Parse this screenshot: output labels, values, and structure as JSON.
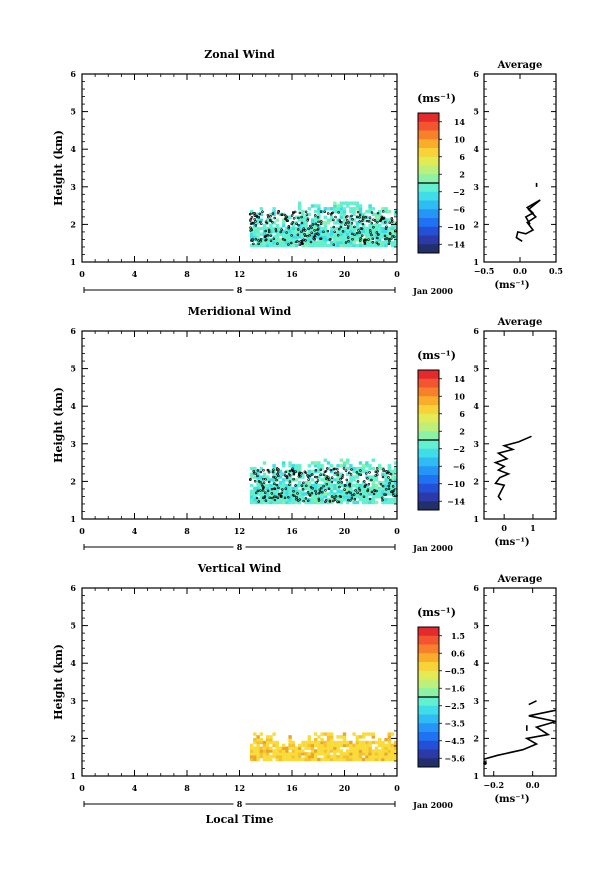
{
  "chart_data": [
    {
      "type": "heatmap",
      "title": "Zonal Wind",
      "ylabel": "Height (km)",
      "ylim": [
        1,
        6
      ],
      "y_ticks": [
        "1",
        "2",
        "3",
        "4",
        "5",
        "6"
      ],
      "xlim": [
        0,
        24
      ],
      "x_ticks": [
        "0",
        "4",
        "8",
        "12",
        "16",
        "20",
        "0"
      ],
      "date_bar_day": "8",
      "date_label": "Jan 2000",
      "colorbar_unit": "(ms⁻¹)",
      "colorbar_range": [
        -16,
        16
      ],
      "colorbar_ticks": [
        "14",
        "10",
        "6",
        "2",
        "−2",
        "−6",
        "−10",
        "−14"
      ],
      "data_region": {
        "x_from": 12.8,
        "x_to": 24,
        "y_from": 1.4,
        "y_to": 2.8
      },
      "dominant_values": [
        -6,
        -2,
        2
      ],
      "average_profile": {
        "title": "Average",
        "xlabel": "(ms⁻¹)",
        "x_ticks": [
          "−0.5",
          "0.0",
          "0.5"
        ],
        "xlim": [
          -0.5,
          0.5
        ],
        "points": [
          [
            0.03,
            1.55
          ],
          [
            -0.05,
            1.65
          ],
          [
            -0.03,
            1.8
          ],
          [
            0.08,
            1.75
          ],
          [
            0.18,
            1.85
          ],
          [
            0.1,
            2.05
          ],
          [
            0.22,
            2.2
          ],
          [
            0.12,
            2.4
          ],
          [
            0.28,
            2.65
          ],
          [
            0.1,
            2.45
          ],
          [
            0.18,
            2.3
          ],
          [
            0.08,
            2.2
          ],
          [
            0.14,
            2.0
          ]
        ],
        "isolated_point": [
          0.23,
          3.05
        ]
      }
    },
    {
      "type": "heatmap",
      "title": "Meridional Wind",
      "ylabel": "Height (km)",
      "ylim": [
        1,
        6
      ],
      "y_ticks": [
        "1",
        "2",
        "3",
        "4",
        "5",
        "6"
      ],
      "xlim": [
        0,
        24
      ],
      "x_ticks": [
        "0",
        "4",
        "8",
        "12",
        "16",
        "20",
        "0"
      ],
      "date_bar_day": "8",
      "date_label": "Jan 2000",
      "colorbar_unit": "(ms⁻¹)",
      "colorbar_range": [
        -16,
        16
      ],
      "colorbar_ticks": [
        "14",
        "10",
        "6",
        "2",
        "−2",
        "−6",
        "−10",
        "−14"
      ],
      "data_region": {
        "x_from": 12.8,
        "x_to": 24,
        "y_from": 1.4,
        "y_to": 2.8
      },
      "dominant_values": [
        -6,
        -2,
        2
      ],
      "average_profile": {
        "title": "Average",
        "xlabel": "(ms⁻¹)",
        "x_ticks": [
          "0",
          "1"
        ],
        "xlim": [
          -0.7,
          1.8
        ],
        "points": [
          [
            -0.1,
            1.5
          ],
          [
            -0.2,
            1.6
          ],
          [
            -0.1,
            1.75
          ],
          [
            0.0,
            1.9
          ],
          [
            -0.3,
            1.95
          ],
          [
            -0.15,
            2.1
          ],
          [
            0.15,
            2.2
          ],
          [
            -0.2,
            2.3
          ],
          [
            0.0,
            2.4
          ],
          [
            -0.3,
            2.5
          ],
          [
            0.1,
            2.6
          ],
          [
            -0.2,
            2.75
          ],
          [
            0.3,
            2.85
          ],
          [
            0.0,
            2.95
          ],
          [
            0.5,
            3.05
          ],
          [
            0.95,
            3.2
          ]
        ]
      }
    },
    {
      "type": "heatmap",
      "title": "Vertical Wind",
      "xlabel": "Local Time",
      "ylabel": "Height (km)",
      "ylim": [
        1,
        6
      ],
      "y_ticks": [
        "1",
        "2",
        "3",
        "4",
        "5",
        "6"
      ],
      "xlim": [
        0,
        24
      ],
      "x_ticks": [
        "0",
        "4",
        "8",
        "12",
        "16",
        "20",
        "0"
      ],
      "date_bar_day": "8",
      "date_label": "Jan 2000",
      "colorbar_unit": "(ms⁻¹)",
      "colorbar_range": [
        -6,
        2
      ],
      "colorbar_ticks": [
        "1.5",
        "0.6",
        "−0.5",
        "−1.6",
        "−2.5",
        "−3.5",
        "−4.5",
        "−5.6"
      ],
      "data_region": {
        "x_from": 12.8,
        "x_to": 24,
        "y_from": 1.4,
        "y_to": 2.4
      },
      "dominant_values": [
        -0.5,
        0.0
      ],
      "average_profile": {
        "title": "Average",
        "xlabel": "(ms⁻¹)",
        "x_ticks": [
          "−0.2",
          "0.0"
        ],
        "xlim": [
          -0.25,
          0.12
        ],
        "points": [
          [
            -0.25,
            1.45
          ],
          [
            -0.18,
            1.55
          ],
          [
            -0.05,
            1.7
          ],
          [
            0.02,
            1.85
          ],
          [
            -0.03,
            2.0
          ],
          [
            0.08,
            2.1
          ],
          [
            0.02,
            2.3
          ],
          [
            0.12,
            2.45
          ],
          [
            -0.02,
            2.6
          ],
          [
            0.12,
            2.75
          ]
        ],
        "isolated_segment": [
          [
            -0.03,
            2.2
          ],
          [
            -0.03,
            2.35
          ]
        ],
        "isolated_segment2": [
          [
            -0.02,
            2.9
          ],
          [
            0.02,
            3.0
          ]
        ]
      }
    }
  ]
}
